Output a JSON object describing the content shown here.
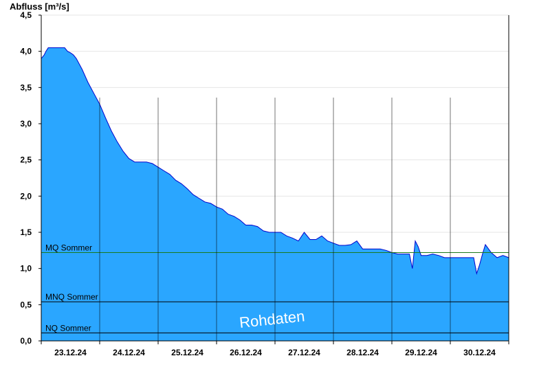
{
  "chart_data": {
    "type": "area",
    "ylabel": "Abfluss [m³/s]",
    "ylim": [
      0,
      4.5
    ],
    "yticks": [
      "0,0",
      "0,5",
      "1,0",
      "1,5",
      "2,0",
      "2,5",
      "3,0",
      "3,5",
      "4,0",
      "4,5"
    ],
    "ytick_values": [
      0,
      0.5,
      1.0,
      1.5,
      2.0,
      2.5,
      3.0,
      3.5,
      4.0,
      4.5
    ],
    "xlim": [
      0,
      8
    ],
    "x_unit": "days since 23.12.24 00:00",
    "xticks": [
      "23.12.24",
      "24.12.24",
      "25.12.24",
      "26.12.24",
      "27.12.24",
      "28.12.24",
      "29.12.24",
      "30.12.24"
    ],
    "fill_color": "#2aa6ff",
    "line_color": "#0000cc",
    "watermark": "Rohdaten",
    "reference_lines": [
      {
        "label": "MQ Sommer",
        "value": 1.22,
        "color": "#1a7a1a"
      },
      {
        "label": "MNQ Sommer",
        "value": 0.54,
        "color": "#000000"
      },
      {
        "label": "NQ Sommer",
        "value": 0.11,
        "color": "#000000"
      }
    ],
    "series": [
      {
        "x": [
          0.0,
          0.05,
          0.08,
          0.12,
          0.15,
          0.2,
          0.25,
          0.3,
          0.35,
          0.4,
          0.45,
          0.5,
          0.55,
          0.6,
          0.7,
          0.8,
          0.9,
          1.0,
          1.1,
          1.2,
          1.3,
          1.4,
          1.5,
          1.6,
          1.7,
          1.8,
          1.9,
          2.0,
          2.1,
          2.2,
          2.3,
          2.4,
          2.5,
          2.6,
          2.7,
          2.8,
          2.9,
          3.0,
          3.1,
          3.2,
          3.3,
          3.4,
          3.5,
          3.6,
          3.7,
          3.8,
          3.9,
          4.0,
          4.1,
          4.2,
          4.3,
          4.4,
          4.5,
          4.6,
          4.7,
          4.8,
          4.9,
          5.0,
          5.1,
          5.2,
          5.3,
          5.4,
          5.5,
          5.6,
          5.7,
          5.8,
          5.9,
          6.0,
          6.1,
          6.2,
          6.3,
          6.35,
          6.4,
          6.45,
          6.5,
          6.6,
          6.7,
          6.8,
          6.9,
          7.0,
          7.1,
          7.2,
          7.3,
          7.4,
          7.45,
          7.5,
          7.55,
          7.6,
          7.7,
          7.8,
          7.9,
          8.0
        ],
        "y": [
          3.9,
          3.95,
          4.0,
          4.05,
          4.05,
          4.05,
          4.05,
          4.05,
          4.05,
          4.05,
          4.0,
          3.98,
          3.95,
          3.9,
          3.75,
          3.57,
          3.42,
          3.27,
          3.08,
          2.9,
          2.75,
          2.62,
          2.52,
          2.47,
          2.47,
          2.47,
          2.45,
          2.4,
          2.35,
          2.3,
          2.22,
          2.17,
          2.1,
          2.02,
          1.97,
          1.92,
          1.9,
          1.85,
          1.82,
          1.75,
          1.72,
          1.67,
          1.6,
          1.6,
          1.58,
          1.52,
          1.5,
          1.5,
          1.5,
          1.45,
          1.42,
          1.38,
          1.5,
          1.4,
          1.4,
          1.45,
          1.38,
          1.35,
          1.32,
          1.32,
          1.33,
          1.38,
          1.27,
          1.27,
          1.27,
          1.27,
          1.25,
          1.22,
          1.2,
          1.2,
          1.2,
          1.0,
          1.38,
          1.3,
          1.18,
          1.18,
          1.2,
          1.18,
          1.15,
          1.15,
          1.15,
          1.15,
          1.15,
          1.15,
          0.93,
          1.05,
          1.2,
          1.33,
          1.22,
          1.15,
          1.18,
          1.15
        ]
      }
    ]
  }
}
